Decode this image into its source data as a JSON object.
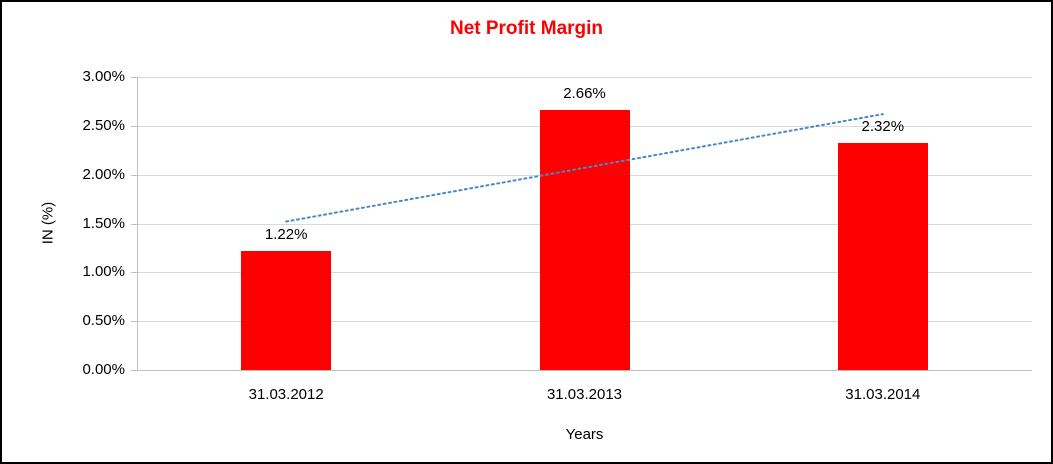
{
  "chart_data": {
    "type": "bar",
    "title": "Net Profit Margin",
    "xlabel": "Years",
    "ylabel": "IN (%)",
    "categories": [
      "31.03.2012",
      "31.03.2013",
      "31.03.2014"
    ],
    "values": [
      1.22,
      2.66,
      2.32
    ],
    "value_labels": [
      "1.22%",
      "2.66%",
      "2.32%"
    ],
    "ylim": [
      0,
      3
    ],
    "ytick_values": [
      0,
      0.5,
      1.0,
      1.5,
      2.0,
      2.5,
      3.0
    ],
    "ytick_labels": [
      "0.00%",
      "0.50%",
      "1.00%",
      "1.50%",
      "2.00%",
      "2.50%",
      "3.00%"
    ],
    "grid": "horizontal",
    "legend": "none",
    "colors": {
      "bar": "#FF0000",
      "title": "#FF0000",
      "gridline": "#D9D9D9",
      "axis_line": "#BFBFBF",
      "axis_text": "#000000",
      "trendline": "#4A86C8"
    },
    "trendline": {
      "type": "linear",
      "style": "dotted",
      "start_value": 1.52,
      "end_value": 2.62
    }
  }
}
